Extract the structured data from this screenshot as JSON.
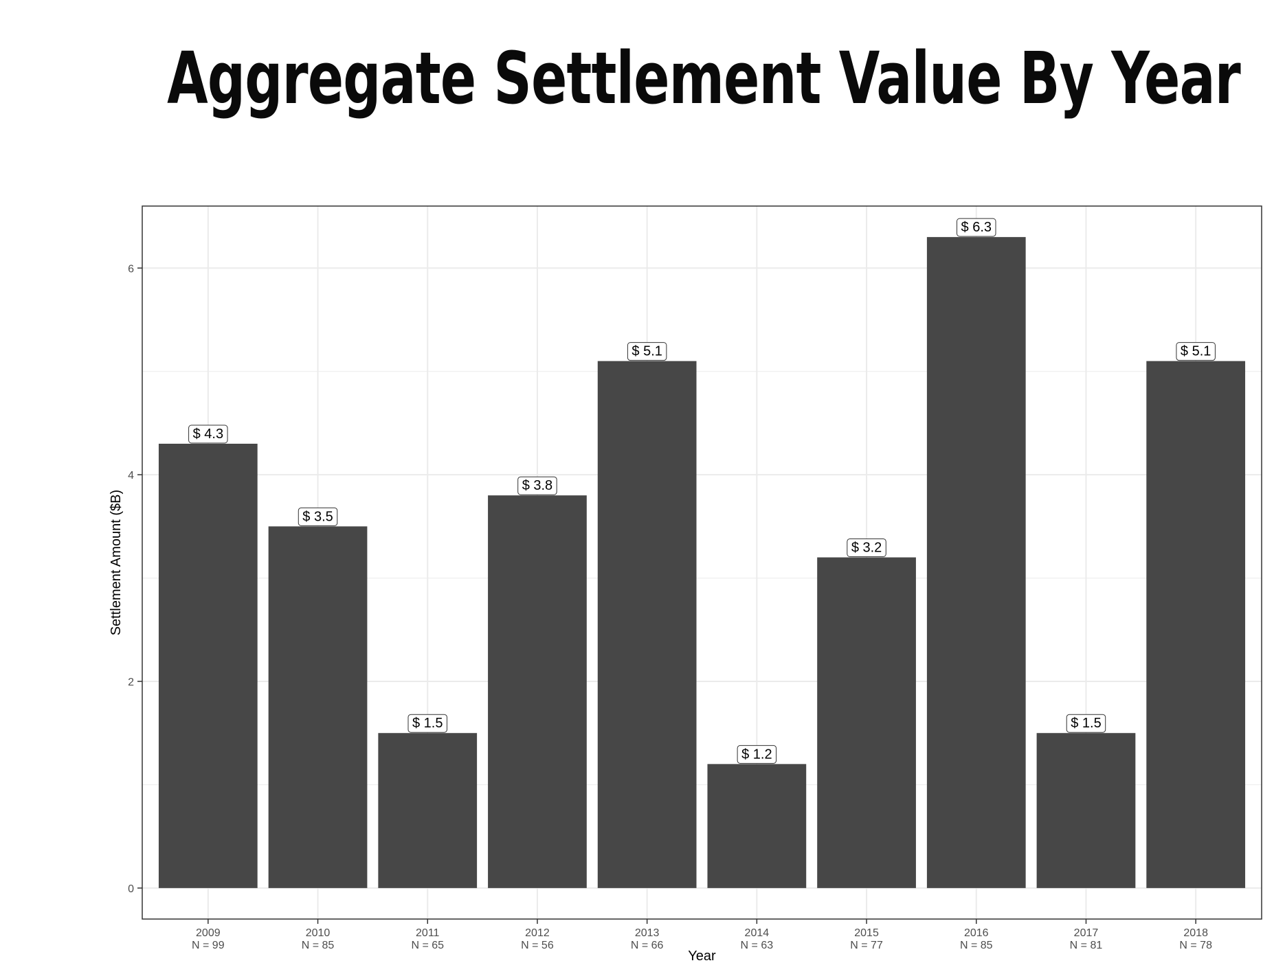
{
  "chart_data": {
    "type": "bar",
    "title": "Aggregate Settlement Value By Year",
    "xlabel": "Year",
    "ylabel": "Settlement Amount ($B)",
    "categories": [
      "2009",
      "2010",
      "2011",
      "2012",
      "2013",
      "2014",
      "2015",
      "2016",
      "2017",
      "2018"
    ],
    "category_sublabels": [
      "N = 99",
      "N = 85",
      "N = 65",
      "N = 56",
      "N = 66",
      "N = 63",
      "N = 77",
      "N = 85",
      "N = 81",
      "N = 78"
    ],
    "values": [
      4.3,
      3.5,
      1.5,
      3.8,
      5.1,
      1.2,
      3.2,
      6.3,
      1.5,
      5.1
    ],
    "data_labels": [
      "$ 4.3",
      "$ 3.5",
      "$ 1.5",
      "$ 3.8",
      "$ 5.1",
      "$ 1.2",
      "$ 3.2",
      "$ 6.3",
      "$ 1.5",
      "$ 5.1"
    ],
    "ylim": [
      -0.3,
      6.6
    ],
    "yticks": [
      0,
      2,
      4,
      6
    ],
    "grid": true,
    "legend": "none",
    "colors": {
      "bar": "#474747",
      "grid": "#ebebeb",
      "panel_border": "#333333"
    }
  }
}
